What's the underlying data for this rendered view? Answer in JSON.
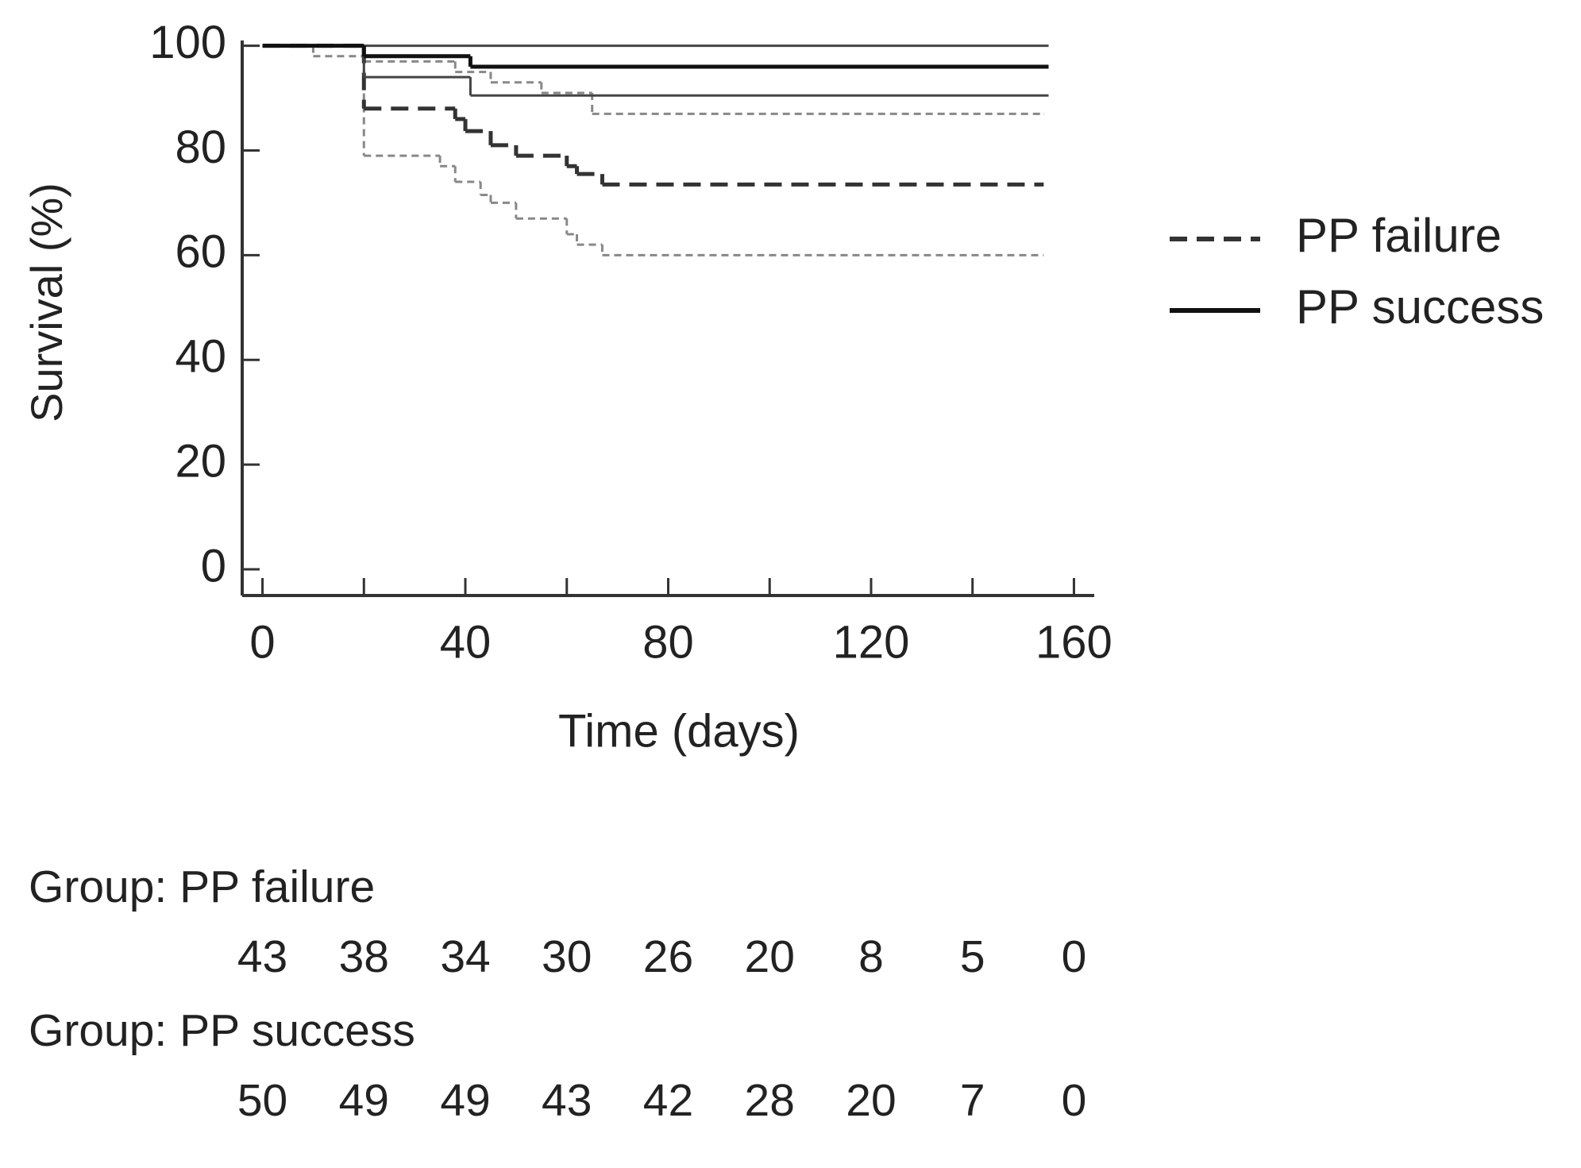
{
  "chart_data": {
    "type": "step",
    "xlabel": "Time (days)",
    "ylabel": "Survival (%)",
    "xlim": [
      -4,
      164
    ],
    "ylim": [
      -5,
      101
    ],
    "xticks": [
      0,
      40,
      80,
      120,
      160
    ],
    "xminor": [
      20,
      60,
      100,
      140
    ],
    "yticks": [
      0,
      20,
      40,
      60,
      80,
      100
    ],
    "legend": "right",
    "series": [
      {
        "name": "PP failure",
        "color": "#333333",
        "dashed": true,
        "ci_color": "#888888",
        "x": [
          0,
          20,
          38,
          40,
          45,
          50,
          60,
          62,
          67,
          154
        ],
        "values": [
          100,
          88,
          86,
          83.7,
          81,
          79,
          77,
          75.5,
          73.5,
          73.5
        ],
        "lower": {
          "x": [
            0,
            20,
            35,
            38,
            43,
            45,
            50,
            60,
            62,
            67,
            154
          ],
          "values": [
            100,
            79,
            77,
            74,
            71.5,
            70,
            67,
            64,
            62,
            60,
            60
          ]
        },
        "upper": {
          "x": [
            0,
            10,
            20,
            38,
            45,
            55,
            65,
            154
          ],
          "values": [
            100,
            98,
            97,
            95,
            93,
            91,
            87,
            87
          ]
        }
      },
      {
        "name": "PP success",
        "color": "#111111",
        "dashed": false,
        "ci_color": "#444444",
        "x": [
          0,
          20,
          41,
          155
        ],
        "values": [
          100,
          98,
          96,
          96
        ],
        "lower": {
          "x": [
            0,
            20,
            41,
            155
          ],
          "values": [
            100,
            94,
            90.5,
            90.5
          ]
        },
        "upper": {
          "x": [
            0,
            155
          ],
          "values": [
            100,
            100
          ]
        }
      }
    ],
    "risk_table": [
      {
        "label": "Group: PP failure",
        "counts": [
          43,
          38,
          34,
          30,
          26,
          20,
          8,
          5,
          0
        ]
      },
      {
        "label": "Group: PP success",
        "counts": [
          50,
          49,
          49,
          43,
          42,
          28,
          20,
          7,
          0
        ]
      }
    ]
  }
}
